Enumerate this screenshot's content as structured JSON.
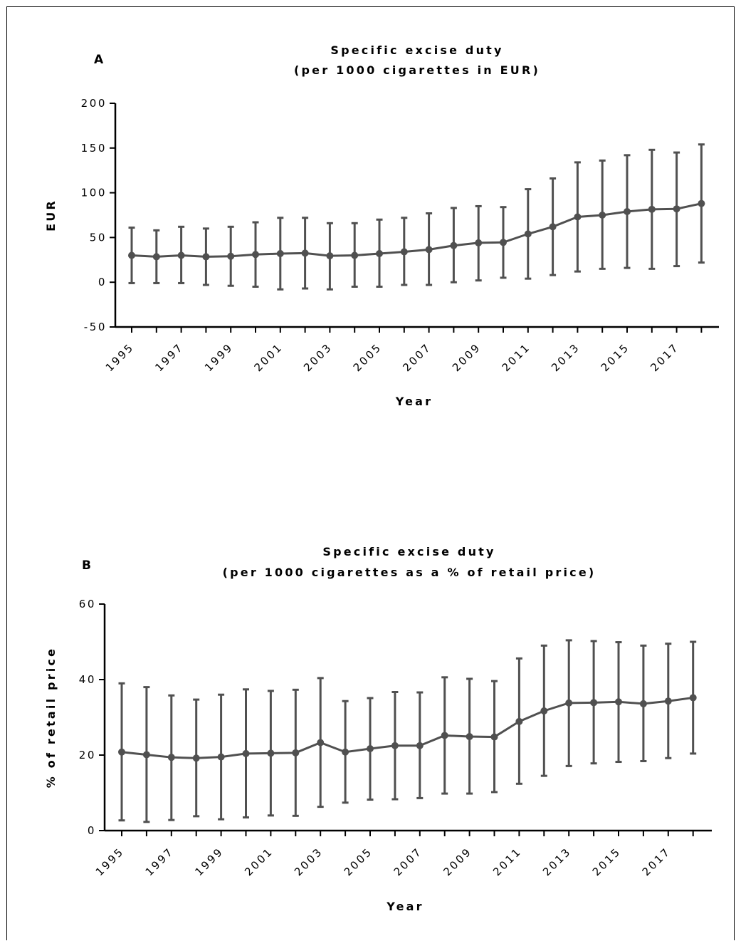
{
  "chart_data": [
    {
      "panel": "A",
      "type": "line",
      "title_line1": "Specific excise duty",
      "title_line2": "(per 1000 cigarettes in EUR)",
      "xlabel": "Year",
      "ylabel": "EUR",
      "ylim": [
        -50,
        200
      ],
      "yticks": [
        -50,
        0,
        50,
        100,
        150,
        200
      ],
      "ytick_labels": [
        "-50",
        "0",
        "50",
        "100",
        "150",
        "200"
      ],
      "x": [
        1995,
        1996,
        1997,
        1998,
        1999,
        2000,
        2001,
        2002,
        2003,
        2004,
        2005,
        2006,
        2007,
        2008,
        2009,
        2010,
        2011,
        2012,
        2013,
        2014,
        2015,
        2016,
        2017,
        2018
      ],
      "xtick_labels": [
        "1995",
        "1997",
        "1999",
        "2001",
        "2003",
        "2005",
        "2007",
        "2009",
        "2011",
        "2013",
        "2015",
        "2017"
      ],
      "xtick_values": [
        1995,
        1997,
        1999,
        2001,
        2003,
        2005,
        2007,
        2009,
        2011,
        2013,
        2015,
        2017
      ],
      "series": [
        {
          "values": [
            30,
            28.5,
            30,
            28.5,
            29,
            31,
            32,
            32.5,
            29.5,
            30,
            32,
            34,
            36.5,
            41,
            44,
            44.5,
            54,
            62,
            73,
            75,
            79,
            81.5,
            82,
            88
          ],
          "error_low": [
            -1,
            -1,
            -1,
            -3,
            -4,
            -5,
            -8,
            -7,
            -8,
            -5,
            -5,
            -3,
            -3,
            0,
            2,
            5,
            4,
            8,
            12,
            15,
            16,
            15,
            18,
            22
          ],
          "error_high": [
            61,
            58,
            62,
            60,
            62,
            67,
            72,
            72,
            66,
            66,
            70,
            72,
            77,
            83,
            85,
            84,
            104,
            116,
            134,
            136,
            142,
            148,
            145,
            154
          ]
        }
      ],
      "grid": false,
      "color": "#505050"
    },
    {
      "panel": "B",
      "type": "line",
      "title_line1": "Specific excise duty",
      "title_line2": "(per 1000 cigarettes as a % of retail price)",
      "xlabel": "Year",
      "ylabel": "% of retail price",
      "ylim": [
        0,
        60
      ],
      "yticks": [
        0,
        20,
        40,
        60
      ],
      "ytick_labels": [
        "0",
        "20",
        "40",
        "60"
      ],
      "x": [
        1995,
        1996,
        1997,
        1998,
        1999,
        2000,
        2001,
        2002,
        2003,
        2004,
        2005,
        2006,
        2007,
        2008,
        2009,
        2010,
        2011,
        2012,
        2013,
        2014,
        2015,
        2016,
        2017,
        2018
      ],
      "xtick_labels": [
        "1995",
        "1997",
        "1999",
        "2001",
        "2003",
        "2005",
        "2007",
        "2009",
        "2011",
        "2013",
        "2015",
        "2017"
      ],
      "xtick_values": [
        1995,
        1997,
        1999,
        2001,
        2003,
        2005,
        2007,
        2009,
        2011,
        2013,
        2015,
        2017
      ],
      "series": [
        {
          "values": [
            20.8,
            20.1,
            19.4,
            19.2,
            19.5,
            20.4,
            20.5,
            20.6,
            23.3,
            20.8,
            21.7,
            22.5,
            22.5,
            25.2,
            24.9,
            24.8,
            28.9,
            31.7,
            33.8,
            33.9,
            34.1,
            33.6,
            34.3,
            35.2
          ],
          "error_low": [
            2.7,
            2.3,
            2.8,
            3.8,
            3.0,
            3.5,
            4.0,
            3.9,
            6.3,
            7.4,
            8.2,
            8.3,
            8.6,
            9.8,
            9.8,
            10.2,
            12.4,
            14.5,
            17.1,
            17.8,
            18.2,
            18.4,
            19.2,
            20.4
          ],
          "error_high": [
            39.0,
            38.0,
            35.8,
            34.7,
            36.0,
            37.4,
            37.0,
            37.3,
            40.4,
            34.3,
            35.1,
            36.7,
            36.6,
            40.6,
            40.2,
            39.6,
            45.6,
            49.0,
            50.4,
            50.2,
            49.9,
            49.0,
            49.5,
            50.0
          ]
        }
      ],
      "grid": false,
      "color": "#505050"
    }
  ]
}
